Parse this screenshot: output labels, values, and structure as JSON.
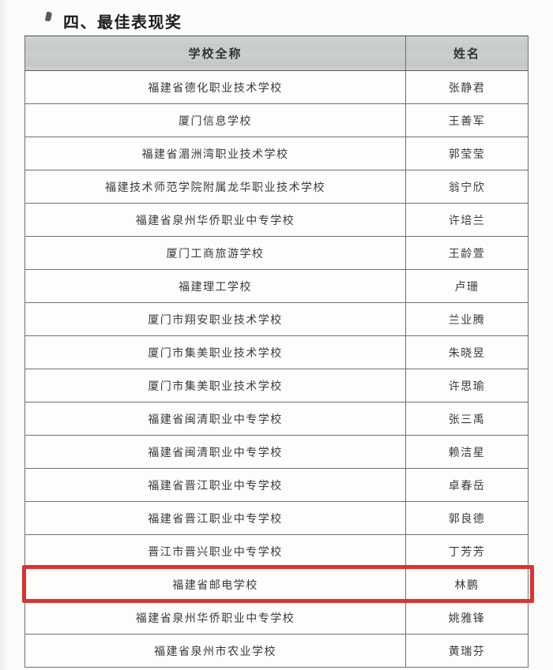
{
  "title": "四、最佳表现奖",
  "table": {
    "headers": [
      "学校全称",
      "姓名"
    ],
    "header_bg": "#c8cccb",
    "border_color": "#6d7170",
    "rows": [
      {
        "school": "福建省德化职业技术学校",
        "name": "张静君"
      },
      {
        "school": "厦门信息学校",
        "name": "王善军"
      },
      {
        "school": "福建省湄洲湾职业技术学校",
        "name": "郭莹莹"
      },
      {
        "school": "福建技术师范学院附属龙华职业技术学校",
        "name": "翁宁欣"
      },
      {
        "school": "福建省泉州华侨职业中专学校",
        "name": "许培兰"
      },
      {
        "school": "厦门工商旅游学校",
        "name": "王龄萱"
      },
      {
        "school": "福建理工学校",
        "name": "卢珊"
      },
      {
        "school": "厦门市翔安职业技术学校",
        "name": "兰业腾"
      },
      {
        "school": "厦门市集美职业技术学校",
        "name": "朱晓昱"
      },
      {
        "school": "厦门市集美职业技术学校",
        "name": "许思瑜"
      },
      {
        "school": "福建省闽清职业中专学校",
        "name": "张三禹"
      },
      {
        "school": "福建省闽清职业中专学校",
        "name": "赖洁星"
      },
      {
        "school": "福建省晋江职业中专学校",
        "name": "卓春岳"
      },
      {
        "school": "福建省晋江职业中专学校",
        "name": "郭良德"
      },
      {
        "school": "晋江市晋兴职业中专学校",
        "name": "丁芳芳"
      },
      {
        "school": "福建省邮电学校",
        "name": "林鹏"
      },
      {
        "school": "福建省泉州华侨职业中专学校",
        "name": "姚雅锋"
      },
      {
        "school": "福建省泉州市农业学校",
        "name": "黄瑞芬"
      }
    ],
    "highlighted_row_index": 15,
    "highlight_color": "#d93331"
  }
}
